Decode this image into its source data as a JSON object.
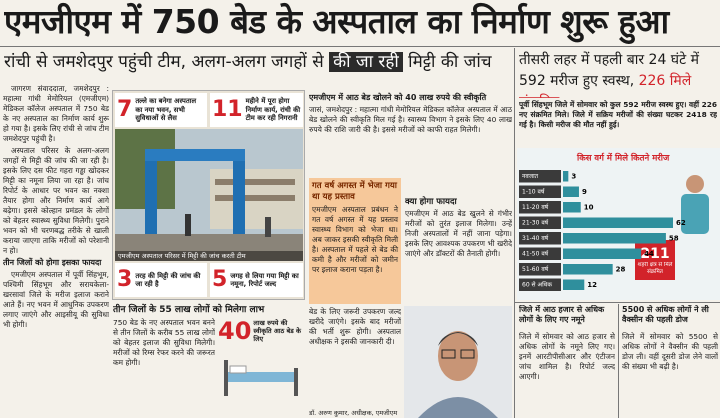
{
  "header": {
    "title": "एमजीएम में 750 बेड के अस्पताल का निर्माण शुरू हुआ",
    "subtitle_before": "रांची से जमशेदपुर पहुंची टीम, अलग-अलग जगहों से",
    "subtitle_highlight": "की जा रही",
    "subtitle_after": "मिट्टी की जांच"
  },
  "left_column": {
    "paragraphs": [
      "जागरण संवाददाता, जमशेदपुर : महात्मा गांधी मेमोरियल (एमजीएम) मेडिकल कॉलेज अस्पताल में 750 बेड के नए अस्पताल का निर्माण कार्य शुरू हो गया है। इसके लिए रांची से जांच टीम जमशेदपुर पहुंची है।",
      "अस्पताल परिसर के अलग-अलग जगहों से मिट्टी की जांच की जा रही है। इसके लिए दस फीट गहरा गड्ढा खोदकर मिट्टी का नमूना लिया जा रहा है। जांच रिपोर्ट के आधार पर भवन का नक्शा तैयार होगा और निर्माण कार्य आगे बढ़ेगा। इससे कोल्हान प्रमंडल के लोगों को बेहतर स्वास्थ्य सुविधा मिलेगी। पुराने भवन को भी चरणबद्ध तरीके से खाली कराया जाएगा ताकि मरीजों को परेशानी न हो।"
    ],
    "subhead": "तीन जिलों को होगा इसका फायदा",
    "paragraphs_after": [
      "एमजीएम अस्पताल में पूर्वी सिंहभूम, पश्चिमी सिंहभूम और सरायकेला-खरसावां जिले के मरीज इलाज कराने आते हैं। नए भवन में आधुनिक उपकरण लगाए जाएंगे और आइसीयू की सुविधा भी होगी।"
    ]
  },
  "photo_box": {
    "stats": [
      {
        "number": "7",
        "text": "तल्ले का बनेगा अस्पताल का नया भवन, सभी सुविधाओं से लैस"
      },
      {
        "number": "11",
        "text": "महीने में पूरा होगा निर्माण कार्य, रांची की टीम कर रही निगरानी"
      },
      {
        "number": "3",
        "text": "तरह की मिट्टी की जांच की जा रही है"
      },
      {
        "number": "5",
        "text": "जगह से लिया गया मिट्टी का नमूना, रिपोर्ट जल्द"
      }
    ],
    "caption": "एमजीएम अस्पताल परिसर में मिट्टी की जांच करती टीम"
  },
  "benefit": {
    "title": "तीन जिलों के 55 लाख लोगों को मिलेगा लाभ",
    "text": "750 बेड के नए अस्पताल भवन बनने से तीन जिलों के करीब 55 लाख लोगों को बेहतर इलाज की सुविधा मिलेगी। मरीजों को रिम्स रेफर करने की जरूरत कम होगी।",
    "stat_number": "40",
    "stat_text": "लाख रुपये की स्वीकृति आठ बेड के लिए"
  },
  "middle_column": {
    "title": "एमजीएम में आठ बेड खोलने को 40 लाख रुपये की स्वीकृति",
    "text": "जासं, जमशेदपुर : महात्मा गांधी मेमोरियल मेडिकल कॉलेज अस्पताल में आठ बेड खोलने की स्वीकृति मिल गई है। स्वास्थ्य विभाग ने इसके लिए 40 लाख रुपये की राशि जारी की है। इससे मरीजों को काफी राहत मिलेगी।",
    "box_title": "गत वर्ष अगस्त में भेजा गया था यह प्रस्ताव",
    "box_text": "एमजीएम अस्पताल प्रबंधन ने गत वर्ष अगस्त में यह प्रस्ताव स्वास्थ्य विभाग को भेजा था। अब जाकर इसकी स्वीकृति मिली है। अस्पताल में पहले से बेड की कमी है और मरीजों को जमीन पर इलाज कराना पड़ता है।",
    "benefit_title": "क्या होगा फायदा",
    "benefit_text": "एमजीएम में आठ बेड खुलने से गंभीर मरीजों को तुरंत इलाज मिलेगा। उन्हें निजी अस्पतालों में नहीं जाना पड़ेगा। इसके लिए आवश्यक उपकरण भी खरीदे जाएंगे और डॉक्टरों की तैनाती होगी।",
    "bottom_text": "बेड के लिए जरूरी उपकरण जल्द खरीदे जाएंगे। इसके बाद मरीजों की भर्ती शुरू होगी। अस्पताल अधीक्षक ने इसकी जानकारी दी।",
    "quote_author": "डॉ. अरुण कुमार, अधीक्षक, एमजीएम"
  },
  "right_column": {
    "title_before": "तीसरी लहर में पहली बार 24 घंटे में 592 मरीज हुए स्वस्थ,",
    "title_highlight": "226 मिले संक्रमित",
    "text": "पूर्वी सिंहभूम जिले में सोमवार को कुल 592 मरीज स्वस्थ हुए। वहीं 226 नए संक्रमित मिले। जिले में सक्रिय मरीजों की संख्या घटकर 2418 रह गई है। किसी मरीज की मौत नहीं हुई।",
    "chart": {
      "title": "किस वर्ग में मिले कितने मरीज",
      "categories": [
        "नवजात",
        "1-10 वर्ष",
        "11-20 वर्ष",
        "21-30 वर्ष",
        "31-40 वर्ष",
        "41-50 वर्ष",
        "51-60 वर्ष",
        "60 से अधिक"
      ],
      "values": [
        3,
        9,
        10,
        62,
        58,
        44,
        28,
        12
      ],
      "color": "#2f8f9d",
      "highlight_number": "211",
      "highlight_text": "शहरी क्षेत्र से मिले संक्रमित"
    },
    "bottom_left": {
      "title": "जिले में आठ हजार से अधिक लोगों के लिए गए नमूने",
      "text": "जिले में सोमवार को आठ हजार से अधिक लोगों के नमूने लिए गए। इनमें आरटीपीसीआर और एंटीजन जांच शामिल है। रिपोर्ट जल्द आएगी।"
    },
    "bottom_right": {
      "title": "5500 से अधिक लोगों ने ली वैक्सीन की पहली डोज",
      "text": "जिले में सोमवार को 5500 से अधिक लोगों ने वैक्सीन की पहली डोज ली। वहीं दूसरी डोज लेने वालों की संख्या भी बढ़ी है।"
    }
  }
}
